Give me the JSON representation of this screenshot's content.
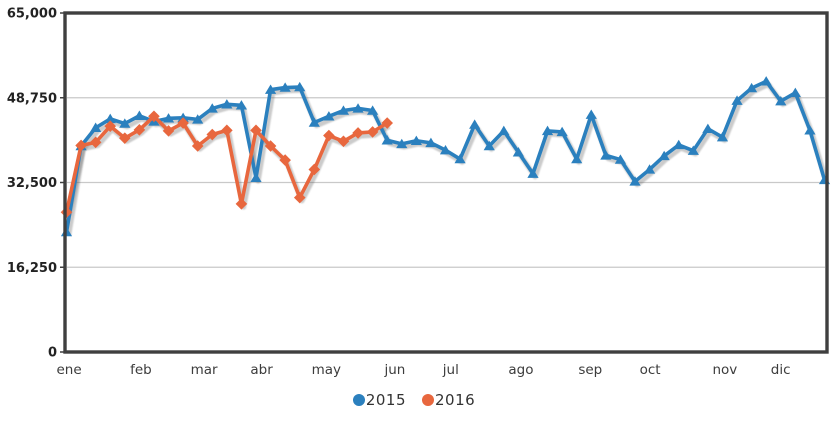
{
  "chart_data": {
    "type": "line",
    "title": "",
    "x_axis": {
      "tick_labels": [
        "ene",
        "feb",
        "mar",
        "abr",
        "may",
        "jun",
        "jul",
        "ago",
        "sep",
        "oct",
        "nov",
        "dic"
      ],
      "tick_week_positions": [
        0,
        5.05,
        9.2,
        13.3,
        17.5,
        22.5,
        26.5,
        31,
        35.8,
        40,
        45,
        49
      ],
      "total_weekly_points": 53
    },
    "y_axis": {
      "min": 0,
      "max": 65000,
      "ticks": [
        0,
        16250,
        32500,
        48750,
        65000
      ],
      "tick_labels": [
        "0",
        "16,250",
        "32,500",
        "48,750",
        "65,000"
      ]
    },
    "grid": "horizontal-only",
    "legend_position": "bottom-center",
    "frame_color": "#3f3f3f",
    "grid_color": "#c9c9c9",
    "shadow_color": "rgba(90,90,90,0.35)",
    "series": [
      {
        "name": "2015",
        "color": "#2b80be",
        "marker": "triangle",
        "values": [
          23000,
          39500,
          43000,
          44700,
          43800,
          45300,
          44200,
          44800,
          44900,
          44600,
          46700,
          47500,
          47300,
          33400,
          50300,
          50700,
          50800,
          44000,
          45200,
          46300,
          46700,
          46300,
          40600,
          39900,
          40500,
          40100,
          38700,
          37000,
          43600,
          39500,
          42400,
          38300,
          34200,
          42400,
          42200,
          37000,
          45500,
          37700,
          36900,
          32700,
          35000,
          37600,
          39700,
          38600,
          42800,
          41200,
          48200,
          50600,
          51900,
          48100,
          49700,
          42500,
          33000
        ]
      },
      {
        "name": "2016",
        "color": "#e8673e",
        "marker": "diamond",
        "values": [
          26800,
          39600,
          40200,
          43300,
          41000,
          42600,
          45200,
          42400,
          43900,
          39500,
          41700,
          42500,
          28400,
          42500,
          39500,
          36800,
          29600,
          35000,
          41500,
          40400,
          42000,
          42200,
          43900
        ]
      }
    ]
  },
  "legend": {
    "items": [
      {
        "label": "2015"
      },
      {
        "label": "2016"
      }
    ]
  }
}
